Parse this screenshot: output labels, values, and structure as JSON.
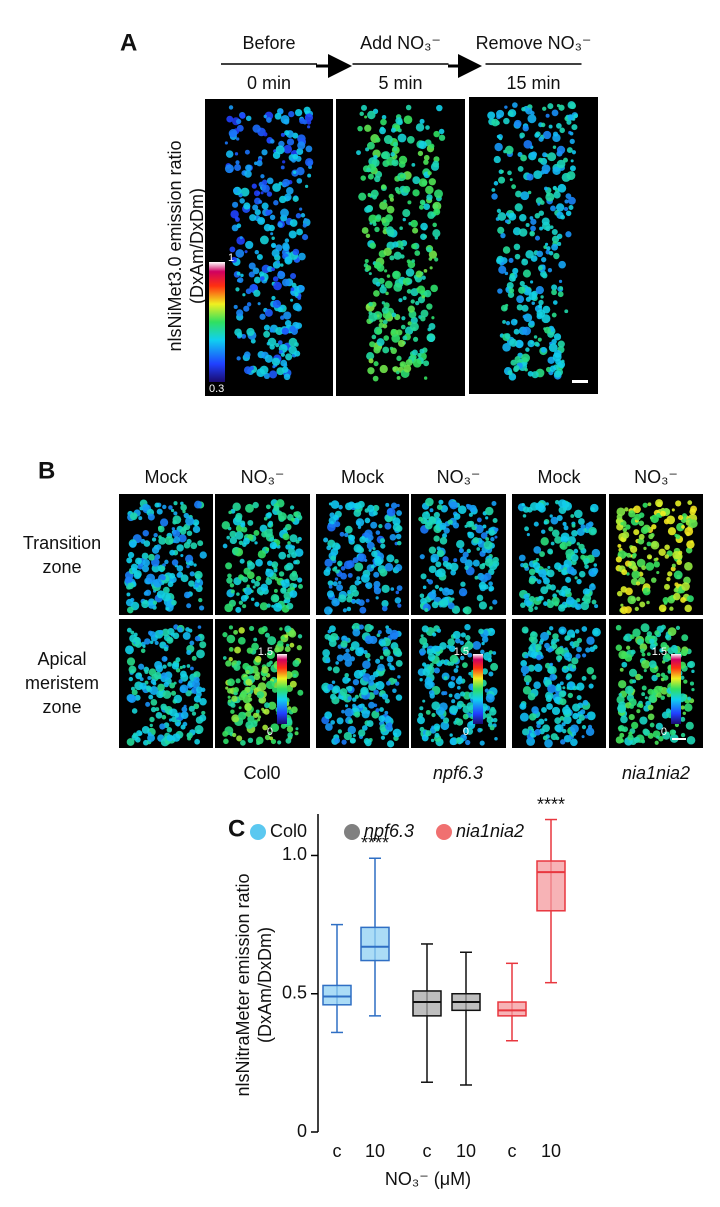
{
  "panel_a": {
    "label": "A",
    "conditions": [
      "Before",
      "Add NO₃⁻",
      "Remove NO₃⁻"
    ],
    "times": [
      "0 min",
      "5 min",
      "15 min"
    ],
    "y_label": [
      "nlsNiMet3.0 emission ratio",
      "(DxAm/DxDm)"
    ],
    "colorbar": [
      "1",
      "0.3"
    ]
  },
  "panel_b": {
    "label": "B",
    "treatments": [
      "Mock",
      "NO₃⁻",
      "Mock",
      "NO₃⁻",
      "Mock",
      "NO₃⁻"
    ],
    "zones": [
      [
        "Transition",
        "zone"
      ],
      [
        "Apical",
        "meristem",
        "zone"
      ]
    ],
    "colorbar": [
      "1.5",
      "0"
    ],
    "genotypes": [
      "Col0",
      "npf6.3",
      "nia1nia2"
    ]
  },
  "chart_data": {
    "type": "box",
    "label": "C",
    "y_label": [
      "nlsNitraMeter emission ratio",
      "(DxAm/DxDm)"
    ],
    "x_label": "NO₃⁻ (μM)",
    "categories": [
      "c",
      "10",
      "c",
      "10",
      "c",
      "10"
    ],
    "ylim": [
      0,
      1.15
    ],
    "yticks": [
      0,
      0.5,
      {
        "value": 1,
        "label": "1.0"
      }
    ],
    "annotations": [
      "****",
      "****"
    ],
    "series": [
      {
        "name": "Col0",
        "color": "#5bc8f0",
        "edge_color": "#2f6fc4",
        "fill_color": "#8fd0f3",
        "min": [
          0.36,
          0.42,
          null,
          null,
          null,
          null
        ],
        "q1": [
          0.46,
          0.62,
          null,
          null,
          null,
          null
        ],
        "median": [
          0.49,
          0.67,
          null,
          null,
          null,
          null
        ],
        "q3": [
          0.53,
          0.74,
          null,
          null,
          null,
          null
        ],
        "max": [
          0.75,
          0.99,
          null,
          null,
          null,
          null
        ]
      },
      {
        "name": "npf6.3",
        "color": "#808080",
        "edge_color": "#111111",
        "fill_color": "#a8a8a8",
        "min": [
          null,
          null,
          0.18,
          0.17,
          null,
          null
        ],
        "q1": [
          null,
          null,
          0.42,
          0.44,
          null,
          null
        ],
        "median": [
          null,
          null,
          0.47,
          0.47,
          null,
          null
        ],
        "q3": [
          null,
          null,
          0.51,
          0.5,
          null,
          null
        ],
        "max": [
          null,
          null,
          0.68,
          0.65,
          null,
          null
        ]
      },
      {
        "name": "nia1nia2",
        "color": "#f07070",
        "edge_color": "#e8373f",
        "fill_color": "#f49a9e",
        "min": [
          null,
          null,
          null,
          null,
          0.33,
          0.54
        ],
        "q1": [
          null,
          null,
          null,
          null,
          0.42,
          0.8
        ],
        "median": [
          null,
          null,
          null,
          null,
          0.44,
          0.94
        ],
        "q3": [
          null,
          null,
          null,
          null,
          0.47,
          0.98
        ],
        "max": [
          null,
          null,
          null,
          null,
          0.61,
          1.13
        ]
      }
    ]
  }
}
